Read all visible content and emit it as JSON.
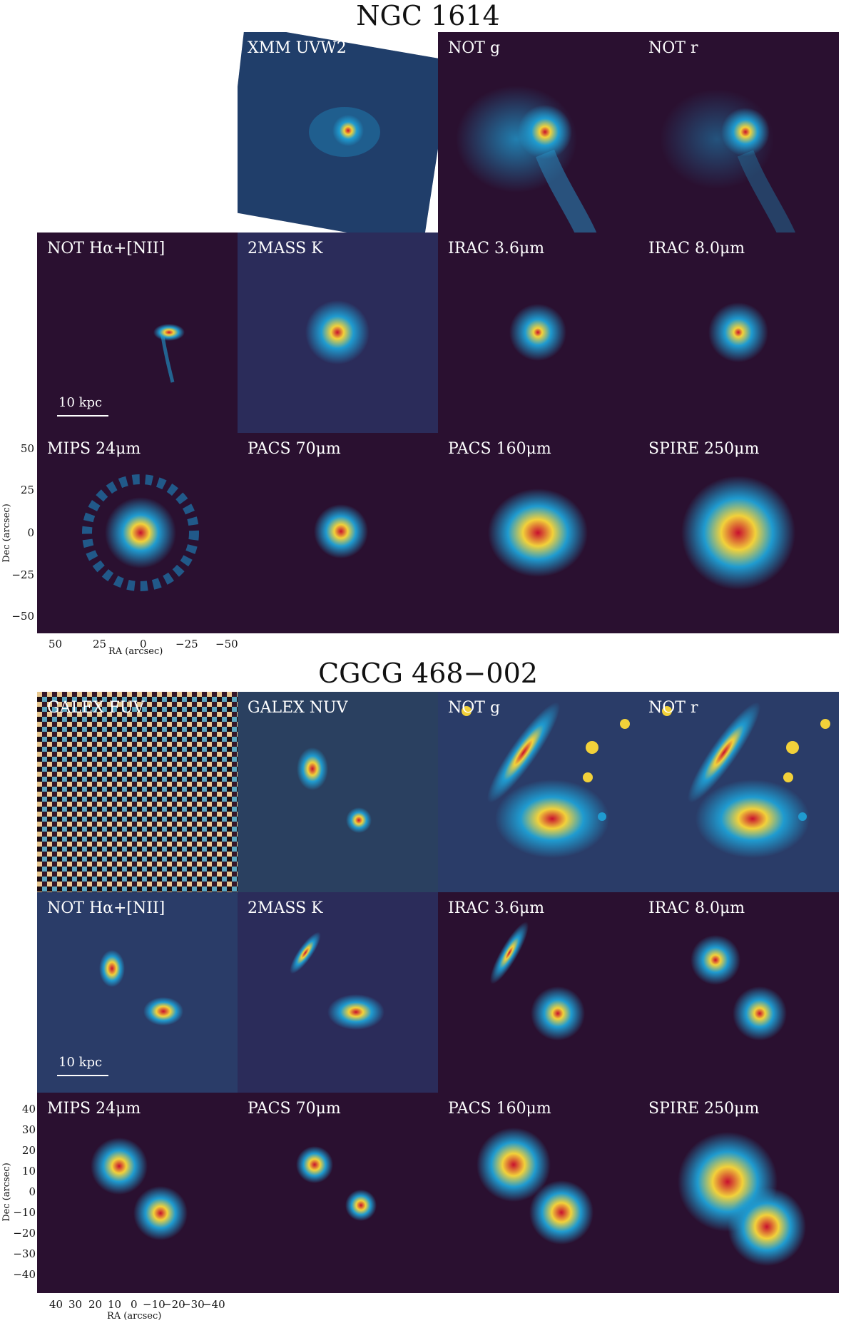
{
  "section1": {
    "title": "NGC 1614",
    "labels": [
      "XMM UVW2",
      "NOT g",
      "NOT r",
      "NOT Hα+[NII]",
      "2MASS K",
      "IRAC 3.6μm",
      "IRAC 8.0μm",
      "MIPS 24μm",
      "PACS 70μm",
      "PACS 160μm",
      "SPIRE 250μm"
    ],
    "scalebar": "10 kpc",
    "yticks": [
      "50",
      "25",
      "0",
      "−25",
      "−50"
    ],
    "xticks": [
      "50",
      "25",
      "0",
      "−25",
      "−50"
    ],
    "ylabel": "Dec (arcsec)",
    "xlabel": "RA (arcsec)"
  },
  "section2": {
    "title": "CGCG 468−002",
    "labels": [
      "GALEX FUV",
      "GALEX NUV",
      "NOT g",
      "NOT r",
      "NOT Hα+[NII]",
      "2MASS K",
      "IRAC 3.6μm",
      "IRAC 8.0μm",
      "MIPS 24μm",
      "PACS 70μm",
      "PACS 160μm",
      "SPIRE 250μm"
    ],
    "scalebar": "10 kpc",
    "yticks": [
      "40",
      "30",
      "20",
      "10",
      "0",
      "−10",
      "−20",
      "−30",
      "−40"
    ],
    "xticks": [
      "40",
      "30",
      "20",
      "10",
      "0",
      "−10",
      "−20",
      "−30",
      "−40"
    ],
    "ylabel": "Dec (arcsec)",
    "xlabel": "RA (arcsec)"
  },
  "colors": {
    "background": "#2a1030",
    "core": "#c8102e",
    "mid": "#f2d13a",
    "outer": "#1f9bd0"
  }
}
